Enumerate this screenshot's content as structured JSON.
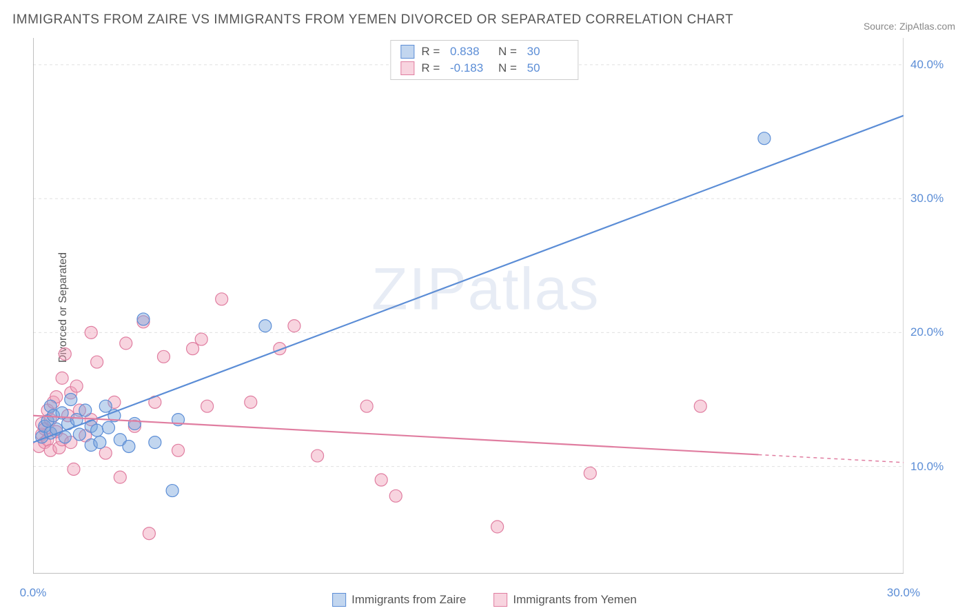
{
  "title": "IMMIGRANTS FROM ZAIRE VS IMMIGRANTS FROM YEMEN DIVORCED OR SEPARATED CORRELATION CHART",
  "source": "Source: ZipAtlas.com",
  "ylabel": "Divorced or Separated",
  "watermark": "ZIPatlas",
  "chart": {
    "type": "scatter",
    "xlim": [
      0,
      30
    ],
    "ylim": [
      2,
      42
    ],
    "xticks": [
      0.0,
      30.0
    ],
    "yticks": [
      10.0,
      20.0,
      30.0,
      40.0
    ],
    "xtick_labels": [
      "0.0%",
      "30.0%"
    ],
    "ytick_labels": [
      "10.0%",
      "20.0%",
      "30.0%",
      "40.0%"
    ],
    "grid_color": "#e0e0e0",
    "axis_color": "#aaaaaa",
    "tick_color": "#aaaaaa",
    "background_color": "#ffffff",
    "marker_radius": 9,
    "marker_opacity": 0.5,
    "series": [
      {
        "name": "Immigrants from Zaire",
        "color": "#6699dd",
        "fill": "rgba(120,165,220,0.45)",
        "stroke": "#5b8dd6",
        "R": "0.838",
        "N": "30",
        "trend": {
          "x1": 0,
          "y1": 11.8,
          "x2": 30,
          "y2": 36.2,
          "solid_until_x": 30
        },
        "points": [
          [
            0.3,
            12.2
          ],
          [
            0.4,
            13.0
          ],
          [
            0.5,
            13.4
          ],
          [
            0.6,
            12.5
          ],
          [
            0.6,
            14.5
          ],
          [
            0.7,
            13.8
          ],
          [
            0.8,
            12.8
          ],
          [
            1.0,
            14.0
          ],
          [
            1.1,
            12.2
          ],
          [
            1.2,
            13.2
          ],
          [
            1.3,
            15.0
          ],
          [
            1.5,
            13.5
          ],
          [
            1.6,
            12.4
          ],
          [
            1.8,
            14.2
          ],
          [
            2.0,
            11.6
          ],
          [
            2.0,
            13.0
          ],
          [
            2.2,
            12.7
          ],
          [
            2.3,
            11.8
          ],
          [
            2.5,
            14.5
          ],
          [
            2.8,
            13.8
          ],
          [
            3.0,
            12.0
          ],
          [
            3.3,
            11.5
          ],
          [
            3.5,
            13.2
          ],
          [
            3.8,
            21.0
          ],
          [
            4.2,
            11.8
          ],
          [
            4.8,
            8.2
          ],
          [
            5.0,
            13.5
          ],
          [
            8.0,
            20.5
          ],
          [
            25.2,
            34.5
          ],
          [
            2.6,
            12.9
          ]
        ]
      },
      {
        "name": "Immigrants from Yemen",
        "color": "#e091a8",
        "fill": "rgba(240,160,185,0.45)",
        "stroke": "#e07da0",
        "R": "-0.183",
        "N": "50",
        "trend": {
          "x1": 0,
          "y1": 13.8,
          "x2": 30,
          "y2": 10.3,
          "solid_until_x": 25
        },
        "points": [
          [
            0.2,
            11.5
          ],
          [
            0.3,
            12.4
          ],
          [
            0.3,
            13.2
          ],
          [
            0.4,
            11.8
          ],
          [
            0.4,
            12.8
          ],
          [
            0.5,
            14.2
          ],
          [
            0.5,
            12.0
          ],
          [
            0.6,
            13.5
          ],
          [
            0.6,
            11.2
          ],
          [
            0.7,
            14.8
          ],
          [
            0.8,
            15.2
          ],
          [
            0.8,
            12.6
          ],
          [
            0.9,
            11.4
          ],
          [
            1.0,
            16.6
          ],
          [
            1.0,
            12.0
          ],
          [
            1.1,
            18.4
          ],
          [
            1.2,
            13.8
          ],
          [
            1.3,
            15.5
          ],
          [
            1.3,
            11.8
          ],
          [
            1.4,
            9.8
          ],
          [
            1.5,
            16.0
          ],
          [
            1.6,
            14.2
          ],
          [
            1.8,
            12.3
          ],
          [
            2.0,
            20.0
          ],
          [
            2.0,
            13.5
          ],
          [
            2.2,
            17.8
          ],
          [
            2.5,
            11.0
          ],
          [
            2.8,
            14.8
          ],
          [
            3.0,
            9.2
          ],
          [
            3.2,
            19.2
          ],
          [
            3.5,
            13.0
          ],
          [
            3.8,
            20.8
          ],
          [
            4.0,
            5.0
          ],
          [
            4.2,
            14.8
          ],
          [
            4.5,
            18.2
          ],
          [
            5.0,
            11.2
          ],
          [
            5.5,
            18.8
          ],
          [
            6.0,
            14.5
          ],
          [
            6.5,
            22.5
          ],
          [
            7.5,
            14.8
          ],
          [
            8.5,
            18.8
          ],
          [
            9.0,
            20.5
          ],
          [
            9.8,
            10.8
          ],
          [
            11.5,
            14.5
          ],
          [
            12.0,
            9.0
          ],
          [
            12.5,
            7.8
          ],
          [
            16.0,
            5.5
          ],
          [
            19.2,
            9.5
          ],
          [
            23.0,
            14.5
          ],
          [
            5.8,
            19.5
          ]
        ]
      }
    ]
  },
  "bottom_legend": [
    {
      "label": "Immigrants from Zaire",
      "fill": "rgba(120,165,220,0.45)",
      "stroke": "#5b8dd6"
    },
    {
      "label": "Immigrants from Yemen",
      "fill": "rgba(240,160,185,0.45)",
      "stroke": "#e07da0"
    }
  ]
}
